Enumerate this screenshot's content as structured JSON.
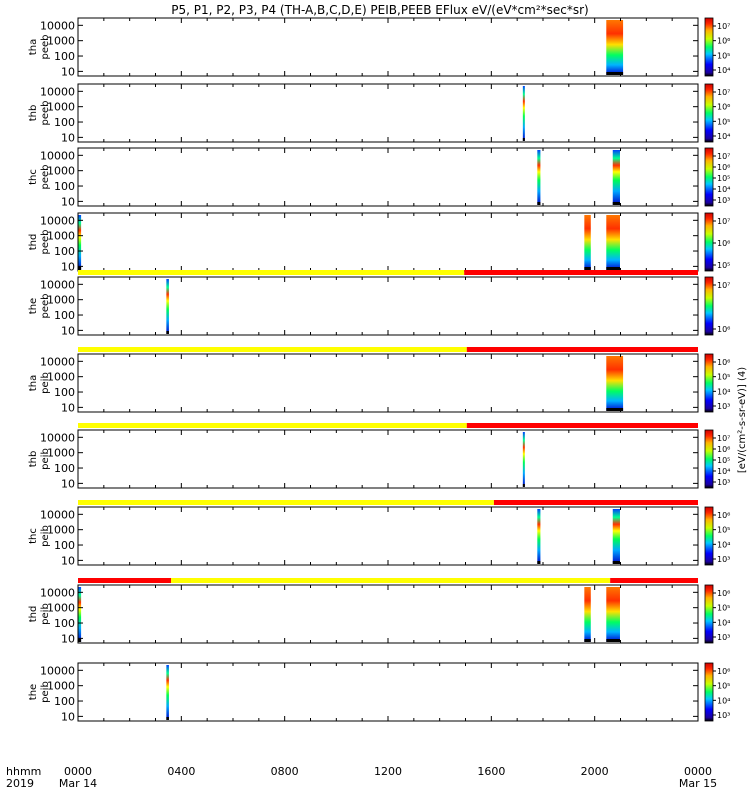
{
  "title": "P5, P1, P2, P3, P4 (TH-A,B,C,D,E) PEIB,PEEB EFlux eV/(eV*cm²*sec*sr)",
  "colorbar_label": "[eV/(cm²-s-sr-eV)] (4)",
  "time_axis": {
    "corner_labels": [
      "hhmm",
      "2019"
    ],
    "ticks": [
      {
        "t": 0,
        "line1": "0000",
        "line2": "Mar 14"
      },
      {
        "t": 4,
        "line1": "0400",
        "line2": ""
      },
      {
        "t": 8,
        "line1": "0800",
        "line2": ""
      },
      {
        "t": 12,
        "line1": "1200",
        "line2": ""
      },
      {
        "t": 16,
        "line1": "1600",
        "line2": ""
      },
      {
        "t": 20,
        "line1": "2000",
        "line2": ""
      },
      {
        "t": 24,
        "line1": "0000",
        "line2": "Mar 15"
      }
    ]
  },
  "chart_data": {
    "type": "heatmap",
    "x_unit": "hours since 2019-03-14 00:00 UT",
    "xlim": [
      0,
      24
    ],
    "ylim": [
      5,
      30000
    ],
    "y_scale": "log",
    "y_ticks": [
      "10",
      "100",
      "1000",
      "10000"
    ],
    "colors": {
      "flag_yellow": "#ffff00",
      "flag_red": "#ff0000"
    },
    "panels": [
      {
        "label1": "tha",
        "label2": "peeb",
        "cbar_ticks": [
          "10⁷",
          "10⁶",
          "10⁵",
          "10⁴"
        ],
        "bars": [
          {
            "t0": 20.45,
            "t1": 21.1,
            "hot": true
          }
        ],
        "flags": []
      },
      {
        "label1": "thb",
        "label2": "peeb",
        "cbar_ticks": [
          "10⁷",
          "10⁶",
          "10⁵",
          "10⁴"
        ],
        "bars": [
          {
            "t0": 17.22,
            "t1": 17.28,
            "hot": false
          }
        ],
        "flags": []
      },
      {
        "label1": "thc",
        "label2": "peeb",
        "cbar_ticks": [
          "10⁷",
          "10⁶",
          "10⁵",
          "10⁴",
          "10³"
        ],
        "bars": [
          {
            "t0": 17.78,
            "t1": 17.9,
            "hot": false
          },
          {
            "t0": 20.7,
            "t1": 20.98,
            "hot": false
          }
        ],
        "flags": []
      },
      {
        "label1": "thd",
        "label2": "peeb",
        "cbar_ticks": [
          "10⁷",
          "10⁶",
          "10⁵"
        ],
        "bars": [
          {
            "t0": 0,
            "t1": 0.12,
            "hot": false
          },
          {
            "t0": 19.6,
            "t1": 19.85,
            "hot": true
          },
          {
            "t0": 20.45,
            "t1": 20.98,
            "hot": true
          }
        ],
        "flags": []
      },
      {
        "label1": "the",
        "label2": "peeb",
        "cbar_ticks": [
          "10⁷",
          "10⁶"
        ],
        "bars": [
          {
            "t0": 3.42,
            "t1": 3.52,
            "hot": false
          }
        ],
        "flags": [
          {
            "t0": 0,
            "t1": 14.95,
            "color": "yellow"
          },
          {
            "t0": 14.95,
            "t1": 24,
            "color": "red"
          }
        ]
      },
      {
        "label1": "tha",
        "label2": "peib",
        "cbar_ticks": [
          "10⁶",
          "10⁵",
          "10⁴",
          "10³"
        ],
        "bars": [
          {
            "t0": 20.45,
            "t1": 21.1,
            "hot": true
          }
        ],
        "flags": [
          {
            "t0": 0,
            "t1": 15.05,
            "color": "yellow"
          },
          {
            "t0": 15.05,
            "t1": 24,
            "color": "red"
          }
        ]
      },
      {
        "label1": "thb",
        "label2": "peib",
        "cbar_ticks": [
          "10⁷",
          "10⁶",
          "10⁵",
          "10⁴",
          "10³"
        ],
        "bars": [
          {
            "t0": 17.22,
            "t1": 17.28,
            "hot": false
          }
        ],
        "flags": [
          {
            "t0": 0,
            "t1": 15.05,
            "color": "yellow"
          },
          {
            "t0": 15.05,
            "t1": 24,
            "color": "red"
          }
        ]
      },
      {
        "label1": "thc",
        "label2": "peib",
        "cbar_ticks": [
          "10⁶",
          "10⁵",
          "10⁴",
          "10³"
        ],
        "bars": [
          {
            "t0": 17.78,
            "t1": 17.9,
            "hot": false
          },
          {
            "t0": 20.7,
            "t1": 20.98,
            "hot": false
          }
        ],
        "flags": [
          {
            "t0": 0,
            "t1": 16.1,
            "color": "yellow"
          },
          {
            "t0": 16.1,
            "t1": 24,
            "color": "red"
          }
        ]
      },
      {
        "label1": "thd",
        "label2": "peib",
        "cbar_ticks": [
          "10⁶",
          "10⁵",
          "10⁴",
          "10³"
        ],
        "bars": [
          {
            "t0": 0,
            "t1": 0.12,
            "hot": false
          },
          {
            "t0": 19.6,
            "t1": 19.85,
            "hot": true
          },
          {
            "t0": 20.45,
            "t1": 20.98,
            "hot": true
          }
        ],
        "flags": [
          {
            "t0": 0,
            "t1": 3.6,
            "color": "red"
          },
          {
            "t0": 3.6,
            "t1": 20.6,
            "color": "yellow"
          },
          {
            "t0": 20.6,
            "t1": 24,
            "color": "red"
          }
        ]
      },
      {
        "label1": "the",
        "label2": "peib",
        "cbar_ticks": [
          "10⁶",
          "10⁵",
          "10⁴",
          "10³"
        ],
        "bars": [
          {
            "t0": 3.42,
            "t1": 3.52,
            "hot": false
          }
        ],
        "flags": []
      }
    ]
  }
}
